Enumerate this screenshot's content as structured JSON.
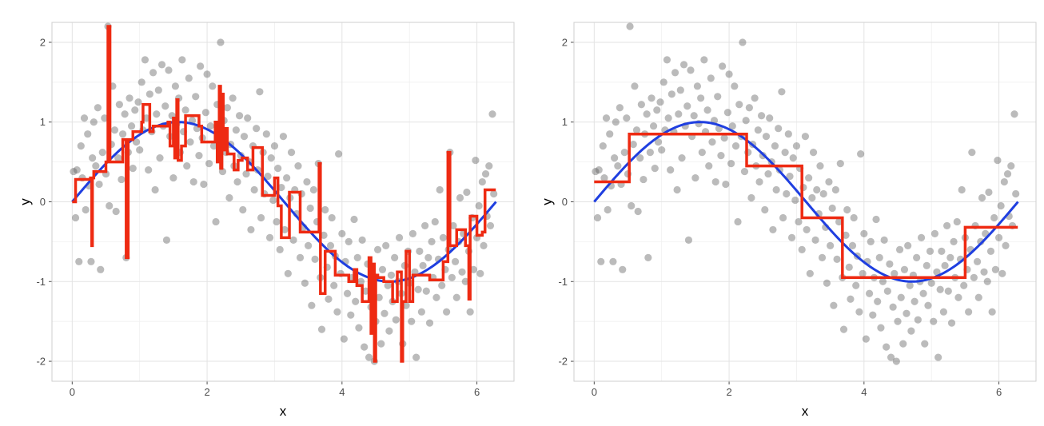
{
  "chart_data": [
    {
      "type": "scatter",
      "xlabel": "x",
      "ylabel": "y",
      "xlim": [
        -0.3,
        6.55
      ],
      "ylim": [
        -2.25,
        2.25
      ],
      "x_ticks": [
        0,
        2,
        4,
        6
      ],
      "y_ticks": [
        -2,
        -1,
        0,
        1,
        2
      ],
      "grid": true,
      "point_color": "#555555",
      "sine_color": "#1f3fe0",
      "step_color": "#ee2a12",
      "points": [
        [
          0.02,
          0.38
        ],
        [
          0.05,
          -0.2
        ],
        [
          0.07,
          0.4
        ],
        [
          0.1,
          -0.75
        ],
        [
          0.13,
          0.7
        ],
        [
          0.15,
          0.3
        ],
        [
          0.18,
          1.05
        ],
        [
          0.2,
          -0.1
        ],
        [
          0.23,
          0.85
        ],
        [
          0.25,
          0.2
        ],
        [
          0.28,
          -0.75
        ],
        [
          0.3,
          0.55
        ],
        [
          0.32,
          1.0
        ],
        [
          0.35,
          0.45
        ],
        [
          0.38,
          1.18
        ],
        [
          0.4,
          0.22
        ],
        [
          0.42,
          -0.85
        ],
        [
          0.45,
          0.62
        ],
        [
          0.48,
          1.05
        ],
        [
          0.5,
          0.35
        ],
        [
          0.53,
          2.2
        ],
        [
          0.55,
          -0.05
        ],
        [
          0.58,
          0.72
        ],
        [
          0.6,
          1.45
        ],
        [
          0.63,
          0.9
        ],
        [
          0.65,
          -0.12
        ],
        [
          0.68,
          0.55
        ],
        [
          0.7,
          1.22
        ],
        [
          0.73,
          0.28
        ],
        [
          0.75,
          0.85
        ],
        [
          0.78,
          1.1
        ],
        [
          0.8,
          -0.7
        ],
        [
          0.83,
          0.62
        ],
        [
          0.85,
          1.3
        ],
        [
          0.88,
          0.95
        ],
        [
          0.9,
          0.42
        ],
        [
          0.93,
          1.15
        ],
        [
          0.95,
          0.75
        ],
        [
          0.98,
          1.25
        ],
        [
          1.0,
          0.65
        ],
        [
          1.03,
          1.5
        ],
        [
          1.05,
          0.9
        ],
        [
          1.08,
          1.78
        ],
        [
          1.1,
          1.05
        ],
        [
          1.13,
          0.4
        ],
        [
          1.15,
          1.35
        ],
        [
          1.18,
          0.88
        ],
        [
          1.2,
          1.62
        ],
        [
          1.23,
          0.15
        ],
        [
          1.25,
          1.1
        ],
        [
          1.28,
          1.4
        ],
        [
          1.3,
          0.55
        ],
        [
          1.33,
          1.72
        ],
        [
          1.35,
          0.95
        ],
        [
          1.38,
          1.2
        ],
        [
          1.4,
          -0.48
        ],
        [
          1.43,
          1.65
        ],
        [
          1.45,
          0.82
        ],
        [
          1.48,
          1.08
        ],
        [
          1.5,
          0.3
        ],
        [
          1.53,
          1.45
        ],
        [
          1.55,
          0.98
        ],
        [
          1.58,
          1.3
        ],
        [
          1.6,
          0.62
        ],
        [
          1.63,
          1.78
        ],
        [
          1.65,
          0.88
        ],
        [
          1.68,
          1.15
        ],
        [
          1.7,
          0.45
        ],
        [
          1.73,
          1.55
        ],
        [
          1.75,
          0.75
        ],
        [
          1.78,
          1.02
        ],
        [
          1.8,
          0.25
        ],
        [
          1.83,
          1.32
        ],
        [
          1.85,
          0.92
        ],
        [
          1.88,
          0.58
        ],
        [
          1.9,
          1.7
        ],
        [
          1.93,
          0.8
        ],
        [
          1.95,
          0.22
        ],
        [
          1.98,
          1.12
        ],
        [
          2.0,
          1.6
        ],
        [
          2.03,
          0.48
        ],
        [
          2.05,
          0.95
        ],
        [
          2.08,
          1.45
        ],
        [
          2.1,
          0.7
        ],
        [
          2.13,
          -0.25
        ],
        [
          2.15,
          1.22
        ],
        [
          2.18,
          0.82
        ],
        [
          2.2,
          2.0
        ],
        [
          2.23,
          0.38
        ],
        [
          2.25,
          1.02
        ],
        [
          2.28,
          0.62
        ],
        [
          2.3,
          1.18
        ],
        [
          2.33,
          0.05
        ],
        [
          2.35,
          0.72
        ],
        [
          2.38,
          1.3
        ],
        [
          2.4,
          0.45
        ],
        [
          2.43,
          0.9
        ],
        [
          2.45,
          0.25
        ],
        [
          2.48,
          1.08
        ],
        [
          2.5,
          0.58
        ],
        [
          2.53,
          -0.1
        ],
        [
          2.55,
          0.82
        ],
        [
          2.58,
          0.35
        ],
        [
          2.6,
          1.05
        ],
        [
          2.63,
          0.5
        ],
        [
          2.65,
          -0.35
        ],
        [
          2.68,
          0.7
        ],
        [
          2.7,
          0.15
        ],
        [
          2.73,
          0.92
        ],
        [
          2.75,
          0.4
        ],
        [
          2.78,
          1.38
        ],
        [
          2.8,
          -0.2
        ],
        [
          2.83,
          0.62
        ],
        [
          2.85,
          0.1
        ],
        [
          2.88,
          0.85
        ],
        [
          2.9,
          0.32
        ],
        [
          2.93,
          -0.45
        ],
        [
          2.95,
          0.55
        ],
        [
          2.98,
          0.02
        ],
        [
          3.0,
          0.7
        ],
        [
          3.03,
          -0.25
        ],
        [
          3.05,
          0.42
        ],
        [
          3.08,
          -0.6
        ],
        [
          3.1,
          0.18
        ],
        [
          3.13,
          0.82
        ],
        [
          3.15,
          -0.35
        ],
        [
          3.18,
          0.3
        ],
        [
          3.2,
          -0.9
        ],
        [
          3.23,
          0.05
        ],
        [
          3.25,
          0.62
        ],
        [
          3.28,
          -0.48
        ],
        [
          3.3,
          0.15
        ],
        [
          3.33,
          -0.15
        ],
        [
          3.35,
          0.45
        ],
        [
          3.38,
          -0.7
        ],
        [
          3.4,
          0.1
        ],
        [
          3.43,
          -0.32
        ],
        [
          3.45,
          -1.02
        ],
        [
          3.48,
          0.25
        ],
        [
          3.5,
          -0.55
        ],
        [
          3.53,
          -0.08
        ],
        [
          3.55,
          -1.3
        ],
        [
          3.58,
          0.15
        ],
        [
          3.6,
          -0.72
        ],
        [
          3.63,
          -0.25
        ],
        [
          3.65,
          0.48
        ],
        [
          3.68,
          -0.95
        ],
        [
          3.7,
          -1.6
        ],
        [
          3.73,
          -0.42
        ],
        [
          3.75,
          -0.1
        ],
        [
          3.78,
          -0.82
        ],
        [
          3.8,
          -1.22
        ],
        [
          3.83,
          -0.55
        ],
        [
          3.85,
          -0.2
        ],
        [
          3.88,
          -1.05
        ],
        [
          3.9,
          -0.68
        ],
        [
          3.93,
          -1.38
        ],
        [
          3.95,
          0.6
        ],
        [
          3.98,
          -0.9
        ],
        [
          4.0,
          -0.4
        ],
        [
          4.03,
          -1.72
        ],
        [
          4.05,
          -0.75
        ],
        [
          4.08,
          -1.15
        ],
        [
          4.1,
          -0.5
        ],
        [
          4.13,
          -1.42
        ],
        [
          4.15,
          -0.95
        ],
        [
          4.18,
          -0.22
        ],
        [
          4.2,
          -1.25
        ],
        [
          4.23,
          -0.7
        ],
        [
          4.25,
          -1.58
        ],
        [
          4.28,
          -1.0
        ],
        [
          4.3,
          -0.48
        ],
        [
          4.33,
          -1.82
        ],
        [
          4.35,
          -1.12
        ],
        [
          4.38,
          -0.78
        ],
        [
          4.4,
          -1.95
        ],
        [
          4.43,
          -1.32
        ],
        [
          4.45,
          -0.9
        ],
        [
          4.48,
          -2.0
        ],
        [
          4.5,
          -1.5
        ],
        [
          4.53,
          -0.6
        ],
        [
          4.55,
          -1.2
        ],
        [
          4.58,
          -1.78
        ],
        [
          4.6,
          -0.85
        ],
        [
          4.63,
          -1.4
        ],
        [
          4.65,
          -0.55
        ],
        [
          4.68,
          -1.05
        ],
        [
          4.7,
          -1.62
        ],
        [
          4.73,
          -0.92
        ],
        [
          4.75,
          -1.25
        ],
        [
          4.78,
          -0.7
        ],
        [
          4.8,
          -1.48
        ],
        [
          4.83,
          -1.0
        ],
        [
          4.85,
          -0.45
        ],
        [
          4.88,
          -1.15
        ],
        [
          4.9,
          -1.78
        ],
        [
          4.93,
          -0.8
        ],
        [
          4.95,
          -1.3
        ],
        [
          4.98,
          -0.62
        ],
        [
          5.0,
          -1.02
        ],
        [
          5.03,
          -1.5
        ],
        [
          5.05,
          -0.4
        ],
        [
          5.08,
          -0.88
        ],
        [
          5.1,
          -1.95
        ],
        [
          5.13,
          -1.1
        ],
        [
          5.15,
          -0.62
        ],
        [
          5.18,
          -1.38
        ],
        [
          5.2,
          -0.8
        ],
        [
          5.23,
          -0.3
        ],
        [
          5.25,
          -1.12
        ],
        [
          5.28,
          -0.7
        ],
        [
          5.3,
          -1.52
        ],
        [
          5.33,
          -0.5
        ],
        [
          5.35,
          -0.95
        ],
        [
          5.38,
          -0.25
        ],
        [
          5.4,
          -1.2
        ],
        [
          5.43,
          -0.72
        ],
        [
          5.45,
          0.15
        ],
        [
          5.48,
          -1.05
        ],
        [
          5.5,
          -0.45
        ],
        [
          5.53,
          -0.85
        ],
        [
          5.55,
          -1.38
        ],
        [
          5.58,
          -0.6
        ],
        [
          5.6,
          0.62
        ],
        [
          5.63,
          -0.95
        ],
        [
          5.65,
          -0.3
        ],
        [
          5.68,
          -0.75
        ],
        [
          5.7,
          -1.2
        ],
        [
          5.73,
          -0.5
        ],
        [
          5.75,
          0.05
        ],
        [
          5.78,
          -0.88
        ],
        [
          5.8,
          -0.4
        ],
        [
          5.83,
          -1.0
        ],
        [
          5.85,
          0.12
        ],
        [
          5.88,
          -0.62
        ],
        [
          5.9,
          -1.38
        ],
        [
          5.93,
          -0.2
        ],
        [
          5.95,
          -0.85
        ],
        [
          5.98,
          0.52
        ],
        [
          6.0,
          -0.45
        ],
        [
          6.03,
          -0.05
        ],
        [
          6.05,
          -0.9
        ],
        [
          6.08,
          0.25
        ],
        [
          6.1,
          -0.55
        ],
        [
          6.13,
          0.35
        ],
        [
          6.15,
          -0.18
        ],
        [
          6.18,
          0.45
        ],
        [
          6.2,
          -0.3
        ],
        [
          6.23,
          1.1
        ],
        [
          6.25,
          0.1
        ]
      ],
      "steps": [
        [
          0.0,
          0.0
        ],
        [
          0.05,
          0.28
        ],
        [
          0.27,
          0.3
        ],
        [
          0.29,
          -0.55
        ],
        [
          0.3,
          0.3
        ],
        [
          0.32,
          0.38
        ],
        [
          0.5,
          0.5
        ],
        [
          0.53,
          2.2
        ],
        [
          0.56,
          0.5
        ],
        [
          0.75,
          0.78
        ],
        [
          0.8,
          -0.7
        ],
        [
          0.83,
          0.78
        ],
        [
          0.9,
          0.88
        ],
        [
          1.03,
          1.0
        ],
        [
          1.05,
          1.22
        ],
        [
          1.15,
          0.88
        ],
        [
          1.2,
          0.95
        ],
        [
          1.42,
          1.0
        ],
        [
          1.45,
          0.7
        ],
        [
          1.5,
          1.05
        ],
        [
          1.52,
          0.55
        ],
        [
          1.55,
          1.28
        ],
        [
          1.57,
          0.52
        ],
        [
          1.62,
          0.7
        ],
        [
          1.68,
          1.08
        ],
        [
          1.88,
          0.95
        ],
        [
          1.92,
          0.75
        ],
        [
          2.12,
          1.0
        ],
        [
          2.15,
          0.5
        ],
        [
          2.18,
          1.45
        ],
        [
          2.2,
          0.42
        ],
        [
          2.22,
          1.35
        ],
        [
          2.24,
          0.65
        ],
        [
          2.27,
          0.92
        ],
        [
          2.3,
          0.6
        ],
        [
          2.4,
          0.4
        ],
        [
          2.46,
          0.52
        ],
        [
          2.52,
          0.55
        ],
        [
          2.6,
          0.4
        ],
        [
          2.68,
          0.68
        ],
        [
          2.82,
          0.08
        ],
        [
          3.0,
          0.3
        ],
        [
          3.05,
          -0.05
        ],
        [
          3.1,
          -0.45
        ],
        [
          3.22,
          0.12
        ],
        [
          3.38,
          -0.38
        ],
        [
          3.6,
          -0.38
        ],
        [
          3.66,
          0.48
        ],
        [
          3.68,
          -1.15
        ],
        [
          3.75,
          -0.62
        ],
        [
          3.9,
          -0.92
        ],
        [
          4.1,
          -1.0
        ],
        [
          4.18,
          -0.85
        ],
        [
          4.22,
          -1.05
        ],
        [
          4.3,
          -1.25
        ],
        [
          4.4,
          -0.7
        ],
        [
          4.43,
          -1.65
        ],
        [
          4.46,
          -0.78
        ],
        [
          4.48,
          -2.0
        ],
        [
          4.5,
          -0.92
        ],
        [
          4.53,
          -0.95
        ],
        [
          4.62,
          -1.0
        ],
        [
          4.75,
          -1.25
        ],
        [
          4.82,
          -0.88
        ],
        [
          4.88,
          -2.0
        ],
        [
          4.9,
          -1.25
        ],
        [
          4.95,
          -0.62
        ],
        [
          5.0,
          -1.25
        ],
        [
          5.05,
          -0.92
        ],
        [
          5.3,
          -0.98
        ],
        [
          5.5,
          -0.75
        ],
        [
          5.57,
          0.62
        ],
        [
          5.6,
          -0.55
        ],
        [
          5.7,
          -0.35
        ],
        [
          5.83,
          -0.55
        ],
        [
          5.88,
          -1.22
        ],
        [
          5.9,
          -0.18
        ],
        [
          6.0,
          -0.42
        ],
        [
          6.08,
          -0.38
        ],
        [
          6.12,
          0.15
        ],
        [
          6.28,
          0.15
        ]
      ]
    },
    {
      "type": "scatter",
      "xlabel": "x",
      "ylabel": "y",
      "xlim": [
        -0.3,
        6.55
      ],
      "ylim": [
        -2.25,
        2.25
      ],
      "x_ticks": [
        0,
        2,
        4,
        6
      ],
      "y_ticks": [
        -2,
        -1,
        0,
        1,
        2
      ],
      "grid": true,
      "point_color": "#555555",
      "sine_color": "#1f3fe0",
      "step_color": "#ee2a12",
      "points_same_as_first": true,
      "steps": [
        [
          0.0,
          0.25
        ],
        [
          0.52,
          0.85
        ],
        [
          2.26,
          0.45
        ],
        [
          3.08,
          -0.2
        ],
        [
          3.68,
          -0.95
        ],
        [
          5.5,
          -0.32
        ],
        [
          6.28,
          -0.32
        ]
      ]
    }
  ]
}
